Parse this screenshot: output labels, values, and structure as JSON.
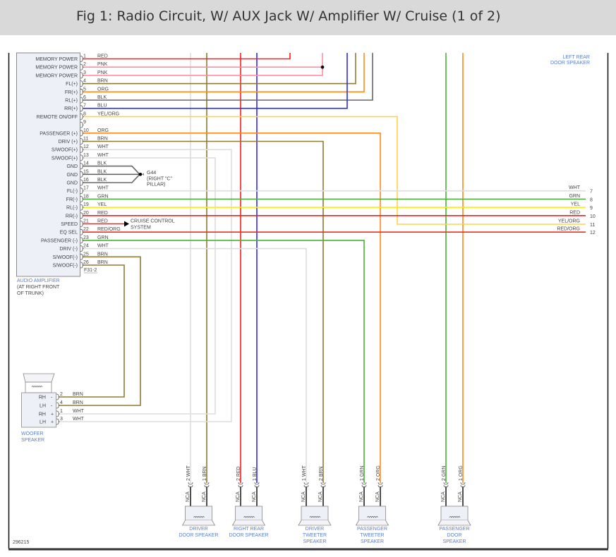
{
  "title": "Fig 1: Radio Circuit, W/ AUX Jack W/ Amplifier W/ Cruise (1 of 2)",
  "figure_number": "296215",
  "colors": {
    "RED": "#ff1a1a",
    "PNK": "#ff8fa3",
    "BRN": "#8f7a35",
    "ORG": "#ff8a1a",
    "BLK": "#666666",
    "BLU": "#2a2aff",
    "YEL/ORG": "#ffd24a",
    "WHT": "#dddddd",
    "GRN": "#4cb038",
    "YEL": "#f5f000",
    "RED/ORG": "#ff2a10",
    "label_blue": "#5a7fcf"
  },
  "amplifier": {
    "name": "AUDIO AMPLIFIER",
    "location": [
      "(AT RIGHT FRONT",
      "OF TRUNK)"
    ],
    "connector": "F31-2",
    "pins": [
      {
        "num": "1",
        "label": "MEMORY POWER",
        "wire": "RED"
      },
      {
        "num": "2",
        "label": "MEMORY POWER",
        "wire": "PNK"
      },
      {
        "num": "3",
        "label": "MEMORY POWER",
        "wire": "PNK"
      },
      {
        "num": "4",
        "label": "FL(+)",
        "wire": "BRN"
      },
      {
        "num": "5",
        "label": "FR(+)",
        "wire": "ORG"
      },
      {
        "num": "6",
        "label": "RL(+)",
        "wire": "BLK"
      },
      {
        "num": "7",
        "label": "RR(+)",
        "wire": "BLU"
      },
      {
        "num": "8",
        "label": "REMOTE ON/OFF",
        "wire": "YEL/ORG"
      },
      {
        "num": "9",
        "label": "",
        "wire": ""
      },
      {
        "num": "10",
        "label": "PASSENGER (+)",
        "wire": "ORG"
      },
      {
        "num": "11",
        "label": "DRIV (+)",
        "wire": "BRN"
      },
      {
        "num": "12",
        "label": "S/WOOF(+)",
        "wire": "WHT"
      },
      {
        "num": "13",
        "label": "S/WOOF(+)",
        "wire": "WHT"
      },
      {
        "num": "14",
        "label": "GND",
        "wire": "BLK"
      },
      {
        "num": "15",
        "label": "GND",
        "wire": "BLK"
      },
      {
        "num": "16",
        "label": "GND",
        "wire": "BLK"
      },
      {
        "num": "17",
        "label": "FL(-)",
        "wire": "WHT"
      },
      {
        "num": "18",
        "label": "FR(-)",
        "wire": "GRN"
      },
      {
        "num": "19",
        "label": "RL(-)",
        "wire": "YEL"
      },
      {
        "num": "20",
        "label": "RR(-)",
        "wire": "RED"
      },
      {
        "num": "21",
        "label": "SPEED",
        "wire": "RED"
      },
      {
        "num": "22",
        "label": "EQ SEL",
        "wire": "RED/ORG"
      },
      {
        "num": "23",
        "label": "PASSENGER (-)",
        "wire": "GRN"
      },
      {
        "num": "24",
        "label": "DRIV (-)",
        "wire": "WHT"
      },
      {
        "num": "25",
        "label": "S/WOOF(-)",
        "wire": "BRN"
      },
      {
        "num": "26",
        "label": "S/WOOF(-)",
        "wire": "BRN"
      }
    ]
  },
  "ground": {
    "name": "G44",
    "location": [
      "(RIGHT \"C\"",
      "PILLAR)"
    ]
  },
  "cruise": [
    "CRUISE CONTROL",
    "SYSTEM"
  ],
  "left_rear_speaker": [
    "LEFT REAR",
    "DOOR SPEAKER"
  ],
  "offpage": [
    {
      "wire": "WHT",
      "num": "7"
    },
    {
      "wire": "GRN",
      "num": "8"
    },
    {
      "wire": "YEL",
      "num": "9"
    },
    {
      "wire": "RED",
      "num": "10"
    },
    {
      "wire": "YEL/ORG",
      "num": "11"
    },
    {
      "wire": "RED/ORG",
      "num": "12"
    }
  ],
  "woofer": {
    "name": [
      "WOOFER",
      "SPEAKER"
    ],
    "pins": [
      {
        "side": "RH",
        "pol": "-",
        "num": "2",
        "wire": "BRN"
      },
      {
        "side": "LH",
        "pol": "-",
        "num": "4",
        "wire": "BRN"
      },
      {
        "side": "RH",
        "pol": "+",
        "num": "1",
        "wire": "WHT"
      },
      {
        "side": "LH",
        "pol": "+",
        "num": "3",
        "wire": "WHT"
      }
    ]
  },
  "speakers": [
    {
      "name": [
        "DRIVER",
        "DOOR SPEAKER"
      ],
      "pins": [
        {
          "label": "2 WHT",
          "wire": "WHT"
        },
        {
          "label": "1 BRN",
          "wire": "BRN"
        }
      ]
    },
    {
      "name": [
        "RIGHT REAR",
        "DOOR SPEAKER"
      ],
      "pins": [
        {
          "label": "2 RED",
          "wire": "RED"
        },
        {
          "label": "1 BLU",
          "wire": "BLU"
        }
      ]
    },
    {
      "name": [
        "DRIVER",
        "TWEETER",
        "SPEAKER"
      ],
      "pins": [
        {
          "label": "1 WHT",
          "wire": "WHT"
        },
        {
          "label": "2 BRN",
          "wire": "BRN"
        }
      ]
    },
    {
      "name": [
        "PASSENGER",
        "TWEETER",
        "SPEAKER"
      ],
      "pins": [
        {
          "label": "1 GRN",
          "wire": "GRN"
        },
        {
          "label": "2 ORG",
          "wire": "ORG"
        }
      ]
    },
    {
      "name": [
        "PASSENGER",
        "DOOR",
        "SPEAKER"
      ],
      "pins": [
        {
          "label": "2 GRN",
          "wire": "GRN"
        },
        {
          "label": "1 ORG",
          "wire": "ORG"
        }
      ]
    }
  ],
  "nca_label": "NCA"
}
